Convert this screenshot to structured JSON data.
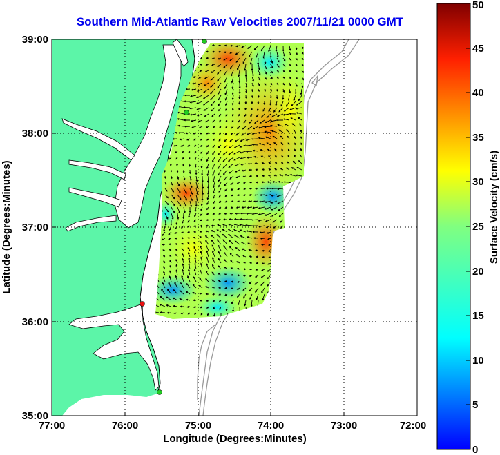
{
  "title": "Southern Mid-Atlantic Raw Velocities 2007/11/21 0000 GMT",
  "map": {
    "x_axis_label": "Longitude (Degrees:Minutes)",
    "y_axis_label": "Latitude (Degrees:Minutes)",
    "x_ticks": [
      "77:00",
      "76:00",
      "75:00",
      "74:00",
      "73:00",
      "72:00"
    ],
    "y_ticks": [
      "39:00",
      "38:00",
      "37:00",
      "36:00",
      "35:00"
    ],
    "lon_range": [
      -77,
      -72
    ],
    "lat_range": [
      35,
      39
    ],
    "grid": "dotted"
  },
  "colorbar": {
    "label": "Surface Velocity (cm/s)",
    "ticks": [
      "0",
      "5",
      "10",
      "15",
      "20",
      "25",
      "30",
      "35",
      "40",
      "45",
      "50"
    ],
    "range": [
      0,
      50
    ],
    "colormap": "jet"
  },
  "stations": [
    {
      "color": "#22cc22"
    },
    {
      "color": "#22cc22"
    },
    {
      "color": "#22cc22"
    },
    {
      "color": "#ee1111"
    }
  ],
  "colors": {
    "land": "#5cf5a8",
    "coast": "#000000",
    "bathymetry": "#999999",
    "title": "#0000ee"
  }
}
